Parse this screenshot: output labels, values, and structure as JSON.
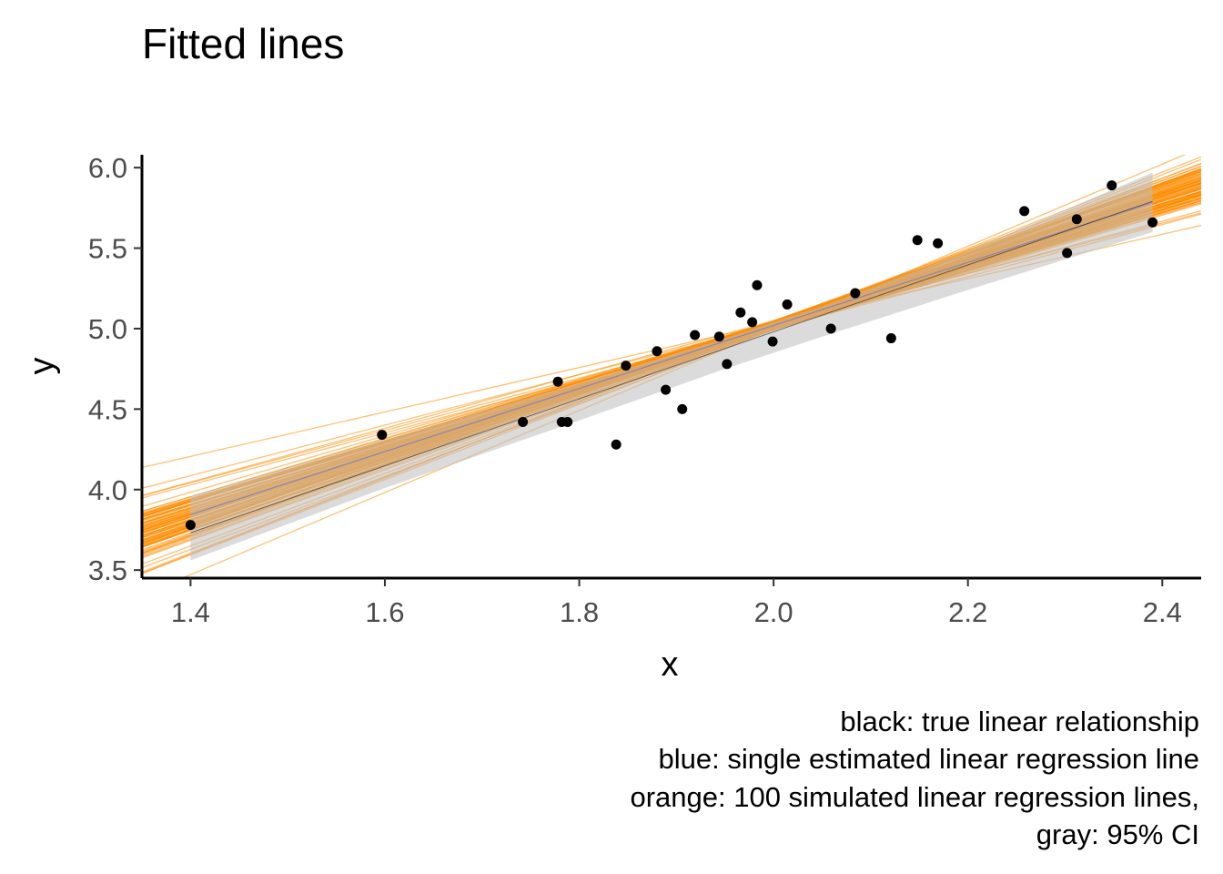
{
  "chart_data": {
    "type": "scatter",
    "title": "Fitted lines",
    "xlabel": "x",
    "ylabel": "y",
    "xlim": [
      1.35,
      2.44
    ],
    "ylim": [
      3.45,
      6.08
    ],
    "x_ticks": [
      1.4,
      1.6,
      1.8,
      2.0,
      2.2,
      2.4
    ],
    "x_tick_labels": [
      "1.4",
      "1.6",
      "1.8",
      "2.0",
      "2.2",
      "2.4"
    ],
    "y_ticks": [
      3.5,
      4.0,
      4.5,
      5.0,
      5.5,
      6.0
    ],
    "y_tick_labels": [
      "3.5",
      "4.0",
      "4.5",
      "5.0",
      "5.5",
      "6.0"
    ],
    "grid": false,
    "caption": [
      "black: true linear relationship",
      "blue: single estimated linear regression line",
      "orange: 100 simulated linear regression lines,",
      "gray: 95% CI"
    ],
    "colors": {
      "points": "#000000",
      "true_line": "#000000",
      "fit_line": "#3366ff",
      "simulated_lines": "#ff8c00",
      "ci_band": "#bebebe",
      "axis": "#000000",
      "tick_label": "#4d4d4d"
    },
    "points": [
      {
        "x": 1.4,
        "y": 3.78
      },
      {
        "x": 1.597,
        "y": 4.34
      },
      {
        "x": 1.742,
        "y": 4.42
      },
      {
        "x": 1.778,
        "y": 4.67
      },
      {
        "x": 1.782,
        "y": 4.42
      },
      {
        "x": 1.788,
        "y": 4.42
      },
      {
        "x": 1.838,
        "y": 4.28
      },
      {
        "x": 1.848,
        "y": 4.77
      },
      {
        "x": 1.88,
        "y": 4.86
      },
      {
        "x": 1.889,
        "y": 4.62
      },
      {
        "x": 1.906,
        "y": 4.5
      },
      {
        "x": 1.919,
        "y": 4.96
      },
      {
        "x": 1.944,
        "y": 4.95
      },
      {
        "x": 1.952,
        "y": 4.78
      },
      {
        "x": 1.966,
        "y": 5.1
      },
      {
        "x": 1.978,
        "y": 5.04
      },
      {
        "x": 1.983,
        "y": 5.27
      },
      {
        "x": 1.999,
        "y": 4.92
      },
      {
        "x": 2.014,
        "y": 5.15
      },
      {
        "x": 2.059,
        "y": 5.0
      },
      {
        "x": 2.084,
        "y": 5.22
      },
      {
        "x": 2.121,
        "y": 4.94
      },
      {
        "x": 2.148,
        "y": 5.55
      },
      {
        "x": 2.169,
        "y": 5.53
      },
      {
        "x": 2.258,
        "y": 5.73
      },
      {
        "x": 2.302,
        "y": 5.47
      },
      {
        "x": 2.312,
        "y": 5.68
      },
      {
        "x": 2.348,
        "y": 5.89
      },
      {
        "x": 2.39,
        "y": 5.66
      }
    ],
    "true_line": {
      "intercept": 0.82,
      "slope": 2.08
    },
    "fit_line": {
      "intercept": 1.1,
      "slope": 1.96
    },
    "ci_band": {
      "x": [
        1.4,
        1.6,
        1.8,
        1.95,
        2.05,
        2.2,
        2.39
      ],
      "lower": [
        3.56,
        4.01,
        4.43,
        4.75,
        4.95,
        5.24,
        5.6
      ],
      "upper": [
        3.96,
        4.31,
        4.66,
        4.94,
        5.14,
        5.48,
        5.97
      ]
    },
    "simulated_lines": {
      "count": 100,
      "center_x": 2.0,
      "center_y": 5.02,
      "slope_mean": 2.0,
      "slope_sd": 0.16,
      "slope_min": 1.38,
      "slope_max": 2.55
    }
  }
}
